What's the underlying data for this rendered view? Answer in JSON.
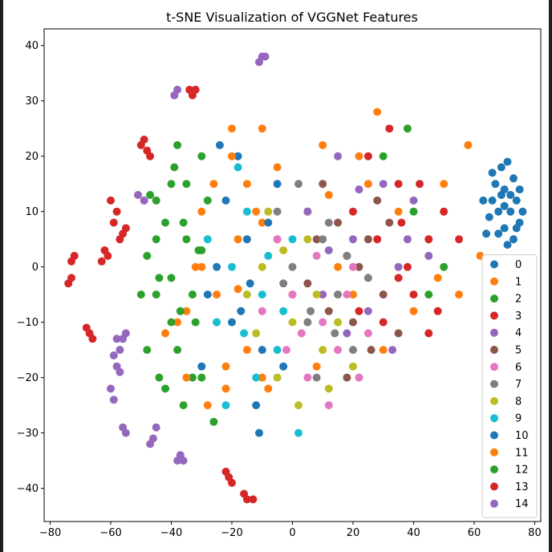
{
  "chart_data": {
    "type": "scatter",
    "title": "t-SNE Visualization of VGGNet Features",
    "xlabel": "",
    "ylabel": "",
    "xlim": [
      -82,
      82
    ],
    "ylim": [
      -46,
      43
    ],
    "xticks": [
      -80,
      -60,
      -40,
      -20,
      0,
      20,
      40,
      60,
      80
    ],
    "yticks": [
      -40,
      -30,
      -20,
      -10,
      0,
      10,
      20,
      30,
      40
    ],
    "grid": false,
    "legend_position": "lower-right",
    "series": [
      {
        "name": "0",
        "color": "#1f77b4",
        "points": [
          [
            70,
            14
          ],
          [
            72,
            10
          ],
          [
            75,
            8
          ],
          [
            68,
            6
          ],
          [
            73,
            16
          ],
          [
            66,
            12
          ],
          [
            71,
            4
          ],
          [
            69,
            18
          ],
          [
            74,
            12
          ],
          [
            65,
            9
          ],
          [
            70,
            7
          ],
          [
            76,
            10
          ],
          [
            67,
            15
          ],
          [
            72,
            13
          ],
          [
            64,
            6
          ],
          [
            71,
            19
          ],
          [
            73,
            5
          ],
          [
            68,
            10
          ],
          [
            75,
            14
          ],
          [
            63,
            12
          ],
          [
            70,
            11
          ],
          [
            66,
            17
          ],
          [
            74,
            7
          ],
          [
            69,
            13
          ]
        ]
      },
      {
        "name": "1",
        "color": "#ff7f0e",
        "points": [
          [
            -25,
            -10
          ],
          [
            -15,
            15
          ],
          [
            -5,
            5
          ],
          [
            5,
            10
          ],
          [
            10,
            22
          ],
          [
            20,
            -5
          ],
          [
            25,
            15
          ],
          [
            -10,
            -20
          ],
          [
            45,
            5
          ],
          [
            55,
            -5
          ],
          [
            58,
            22
          ],
          [
            -35,
            -8
          ],
          [
            30,
            -15
          ],
          [
            -20,
            25
          ],
          [
            15,
            0
          ],
          [
            35,
            10
          ],
          [
            -30,
            0
          ],
          [
            50,
            15
          ],
          [
            -10,
            8
          ],
          [
            0,
            -5
          ],
          [
            8,
            -18
          ],
          [
            40,
            -8
          ],
          [
            -22,
            -22
          ],
          [
            62,
            2
          ],
          [
            28,
            28
          ],
          [
            -42,
            -12
          ],
          [
            48,
            -2
          ],
          [
            12,
            13
          ],
          [
            -18,
            -4
          ],
          [
            22,
            20
          ]
        ]
      },
      {
        "name": "2",
        "color": "#2ca02c",
        "points": [
          [
            -40,
            15
          ],
          [
            -35,
            5
          ],
          [
            -45,
            -5
          ],
          [
            -30,
            20
          ],
          [
            -38,
            -15
          ],
          [
            -42,
            8
          ],
          [
            -33,
            -20
          ],
          [
            -48,
            2
          ],
          [
            -36,
            -25
          ],
          [
            -40,
            -2
          ],
          [
            -28,
            12
          ],
          [
            -45,
            12
          ],
          [
            -32,
            -10
          ],
          [
            30,
            20
          ],
          [
            40,
            10
          ],
          [
            45,
            -5
          ],
          [
            -26,
            -28
          ],
          [
            -44,
            -20
          ],
          [
            38,
            25
          ],
          [
            -37,
            -8
          ],
          [
            50,
            0
          ],
          [
            -30,
            3
          ]
        ]
      },
      {
        "name": "3",
        "color": "#d62728",
        "points": [
          [
            25,
            20
          ],
          [
            35,
            15
          ],
          [
            45,
            5
          ],
          [
            40,
            -5
          ],
          [
            30,
            -10
          ],
          [
            50,
            10
          ],
          [
            38,
            0
          ],
          [
            20,
            10
          ],
          [
            42,
            15
          ],
          [
            28,
            5
          ],
          [
            35,
            -2
          ],
          [
            48,
            -8
          ],
          [
            22,
            -8
          ],
          [
            32,
            25
          ],
          [
            45,
            -12
          ],
          [
            18,
            2
          ],
          [
            55,
            5
          ],
          [
            36,
            8
          ]
        ]
      },
      {
        "name": "4",
        "color": "#9467bd",
        "points": [
          [
            20,
            5
          ],
          [
            30,
            15
          ],
          [
            10,
            -5
          ],
          [
            35,
            0
          ],
          [
            15,
            20
          ],
          [
            40,
            12
          ],
          [
            25,
            -8
          ],
          [
            45,
            2
          ],
          [
            5,
            10
          ],
          [
            18,
            -12
          ],
          [
            33,
            -15
          ],
          [
            22,
            14
          ],
          [
            38,
            5
          ],
          [
            12,
            3
          ]
        ]
      },
      {
        "name": "5",
        "color": "#8c564b",
        "points": [
          [
            15,
            8
          ],
          [
            25,
            5
          ],
          [
            20,
            -10
          ],
          [
            30,
            -5
          ],
          [
            10,
            15
          ],
          [
            35,
            -12
          ],
          [
            5,
            -3
          ],
          [
            18,
            -20
          ],
          [
            28,
            12
          ],
          [
            12,
            -8
          ],
          [
            22,
            0
          ],
          [
            32,
            8
          ],
          [
            8,
            5
          ],
          [
            26,
            -15
          ]
        ]
      },
      {
        "name": "6",
        "color": "#e377c2",
        "points": [
          [
            0,
            -5
          ],
          [
            10,
            -10
          ],
          [
            -5,
            5
          ],
          [
            15,
            -15
          ],
          [
            20,
            0
          ],
          [
            5,
            -20
          ],
          [
            -10,
            -8
          ],
          [
            25,
            -12
          ],
          [
            8,
            2
          ],
          [
            -2,
            -15
          ],
          [
            12,
            -25
          ],
          [
            18,
            -5
          ],
          [
            3,
            -12
          ],
          [
            22,
            -20
          ]
        ]
      },
      {
        "name": "7",
        "color": "#7f7f7f",
        "points": [
          [
            0,
            0
          ],
          [
            10,
            5
          ],
          [
            5,
            -10
          ],
          [
            15,
            -5
          ],
          [
            -5,
            10
          ],
          [
            20,
            -15
          ],
          [
            8,
            -20
          ],
          [
            12,
            8
          ],
          [
            -3,
            -3
          ],
          [
            18,
            2
          ],
          [
            2,
            15
          ],
          [
            25,
            -2
          ],
          [
            6,
            -8
          ],
          [
            14,
            -12
          ]
        ]
      },
      {
        "name": "8",
        "color": "#bcbd22",
        "points": [
          [
            -10,
            0
          ],
          [
            0,
            -10
          ],
          [
            5,
            5
          ],
          [
            -5,
            -20
          ],
          [
            10,
            -15
          ],
          [
            -15,
            -5
          ],
          [
            15,
            -10
          ],
          [
            -8,
            10
          ],
          [
            2,
            -25
          ],
          [
            12,
            -22
          ],
          [
            -12,
            -12
          ],
          [
            8,
            -5
          ],
          [
            -3,
            3
          ],
          [
            20,
            -18
          ]
        ]
      },
      {
        "name": "9",
        "color": "#17becf",
        "points": [
          [
            -15,
            10
          ],
          [
            -10,
            -5
          ],
          [
            -20,
            0
          ],
          [
            -5,
            -15
          ],
          [
            0,
            5
          ],
          [
            -25,
            -10
          ],
          [
            -18,
            18
          ],
          [
            -12,
            -20
          ],
          [
            -8,
            2
          ],
          [
            -22,
            -25
          ],
          [
            -3,
            -8
          ],
          [
            -16,
            -12
          ],
          [
            -28,
            5
          ],
          [
            2,
            -30
          ]
        ]
      },
      {
        "name": "10",
        "color": "#1f77b4",
        "points": [
          [
            -15,
            5
          ],
          [
            -20,
            -10
          ],
          [
            -10,
            -15
          ],
          [
            -25,
            0
          ],
          [
            -5,
            15
          ],
          [
            -18,
            20
          ],
          [
            -12,
            -25
          ],
          [
            -30,
            -18
          ],
          [
            -8,
            8
          ],
          [
            -22,
            12
          ],
          [
            -14,
            -3
          ],
          [
            -28,
            -5
          ],
          [
            -3,
            -18
          ],
          [
            -17,
            -8
          ],
          [
            -24,
            22
          ],
          [
            -11,
            -30
          ]
        ]
      },
      {
        "name": "11",
        "color": "#ff7f0e",
        "points": [
          [
            -20,
            20
          ],
          [
            -30,
            10
          ],
          [
            -15,
            -15
          ],
          [
            -25,
            -5
          ],
          [
            -10,
            25
          ],
          [
            -35,
            -20
          ],
          [
            -5,
            18
          ],
          [
            -28,
            -25
          ],
          [
            -18,
            5
          ],
          [
            -32,
            0
          ],
          [
            -12,
            10
          ],
          [
            -22,
            -18
          ],
          [
            -8,
            -22
          ],
          [
            -38,
            -10
          ],
          [
            -26,
            15
          ]
        ]
      },
      {
        "name": "12",
        "color": "#2ca02c",
        "points": [
          [
            -35,
            15
          ],
          [
            -45,
            5
          ],
          [
            -40,
            -10
          ],
          [
            -30,
            -20
          ],
          [
            -50,
            -5
          ],
          [
            -38,
            22
          ],
          [
            -47,
            13
          ],
          [
            -33,
            -5
          ],
          [
            -42,
            -22
          ],
          [
            -36,
            8
          ],
          [
            -48,
            -15
          ],
          [
            -31,
            3
          ],
          [
            -44,
            -2
          ],
          [
            -39,
            18
          ]
        ]
      },
      {
        "name": "13",
        "color": "#d62728",
        "points": [
          [
            -73,
            1
          ],
          [
            -74,
            -3
          ],
          [
            -72,
            2
          ],
          [
            -73,
            -2
          ],
          [
            -60,
            12
          ],
          [
            -58,
            10
          ],
          [
            -56,
            6
          ],
          [
            -55,
            7
          ],
          [
            -57,
            5
          ],
          [
            -59,
            8
          ],
          [
            -50,
            22
          ],
          [
            -48,
            21
          ],
          [
            -49,
            23
          ],
          [
            -47,
            20
          ],
          [
            -68,
            -11
          ],
          [
            -67,
            -12
          ],
          [
            -66,
            -13
          ],
          [
            -34,
            32
          ],
          [
            -33,
            31
          ],
          [
            -32,
            32
          ],
          [
            -22,
            -37
          ],
          [
            -21,
            -38
          ],
          [
            -20,
            -39
          ],
          [
            -16,
            -41
          ],
          [
            -15,
            -42
          ],
          [
            -13,
            -42
          ],
          [
            -62,
            3
          ],
          [
            -61,
            2
          ],
          [
            -63,
            1
          ]
        ]
      },
      {
        "name": "14",
        "color": "#9467bd",
        "points": [
          [
            -58,
            -13
          ],
          [
            -57,
            -15
          ],
          [
            -56,
            -13
          ],
          [
            -59,
            -16
          ],
          [
            -60,
            -22
          ],
          [
            -59,
            -24
          ],
          [
            -57,
            -19
          ],
          [
            -56,
            -29
          ],
          [
            -55,
            -30
          ],
          [
            -46,
            -31
          ],
          [
            -45,
            -29
          ],
          [
            -47,
            -32
          ],
          [
            -38,
            -35
          ],
          [
            -37,
            -34
          ],
          [
            -36,
            -35
          ],
          [
            -39,
            31
          ],
          [
            -38,
            32
          ],
          [
            -10,
            38
          ],
          [
            -9,
            38
          ],
          [
            -11,
            37
          ],
          [
            -51,
            13
          ],
          [
            -49,
            12
          ],
          [
            -55,
            -12
          ],
          [
            -58,
            -18
          ]
        ]
      }
    ]
  }
}
